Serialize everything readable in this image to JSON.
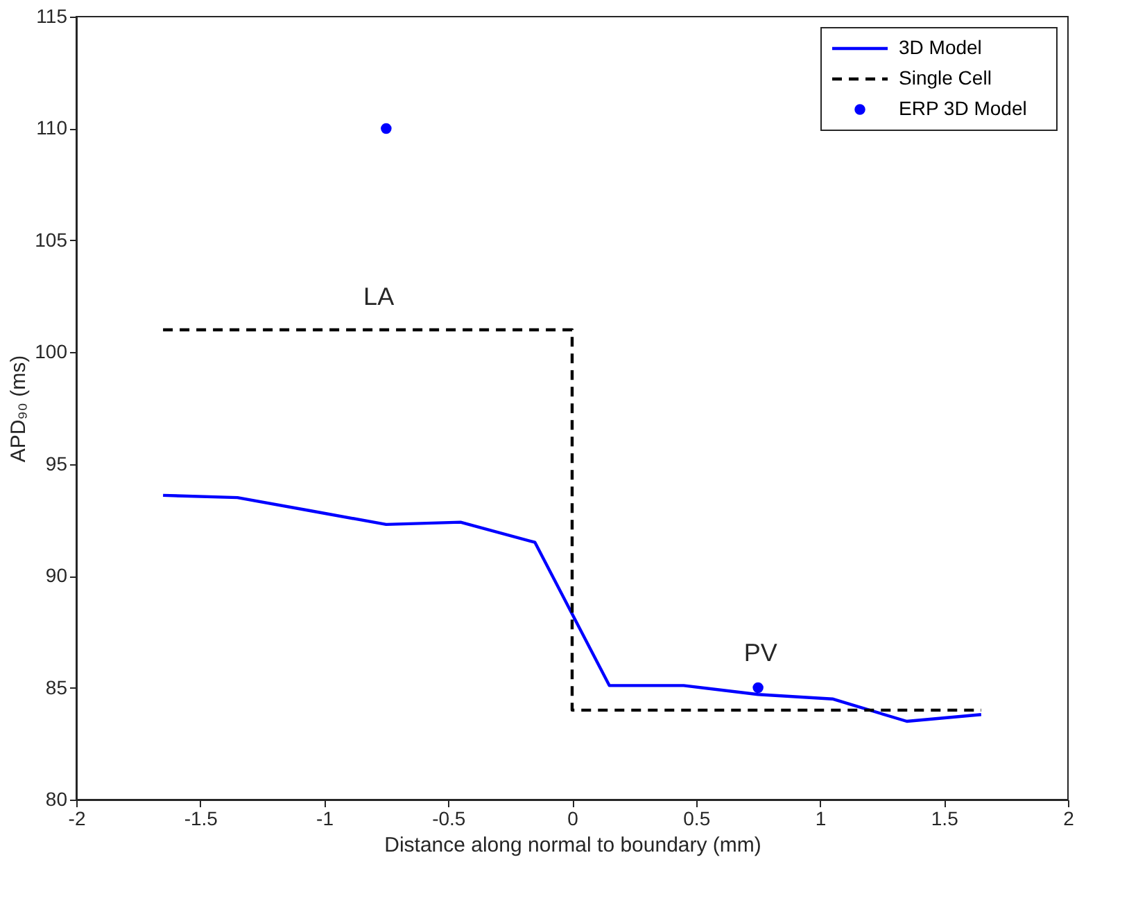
{
  "chart_data": {
    "type": "line",
    "xlabel": "Distance along normal to boundary (mm)",
    "ylabel": "APD₉₀ (ms)",
    "xlim": [
      -2,
      2
    ],
    "xticks": [
      -2,
      -1.5,
      -1,
      -0.5,
      0,
      0.5,
      1,
      1.5,
      2
    ],
    "ylim": [
      80,
      115
    ],
    "yticks": [
      80,
      85,
      90,
      95,
      100,
      105,
      110,
      115
    ],
    "grid": false,
    "legend": "top right",
    "series": [
      {
        "name": "3D Model",
        "type": "line",
        "color": "#0000ff",
        "line_style": "solid",
        "x": [
          -1.65,
          -1.35,
          -1.05,
          -0.75,
          -0.45,
          -0.15,
          0.15,
          0.45,
          0.75,
          1.05,
          1.35,
          1.65
        ],
        "values": [
          93.6,
          93.5,
          92.9,
          92.3,
          92.4,
          91.5,
          85.1,
          85.1,
          84.7,
          84.5,
          83.5,
          83.8
        ]
      },
      {
        "name": "Single Cell",
        "type": "line",
        "color": "#000000",
        "line_style": "dashed",
        "x": [
          -1.65,
          0,
          0,
          1.65
        ],
        "values": [
          101,
          101,
          84,
          84
        ]
      },
      {
        "name": "ERP 3D Model",
        "type": "scatter",
        "color": "#0000ff",
        "marker": "circle",
        "x": [
          -0.75,
          0.75
        ],
        "values": [
          110,
          85
        ]
      }
    ],
    "annotations": [
      "LA",
      "PV"
    ]
  }
}
